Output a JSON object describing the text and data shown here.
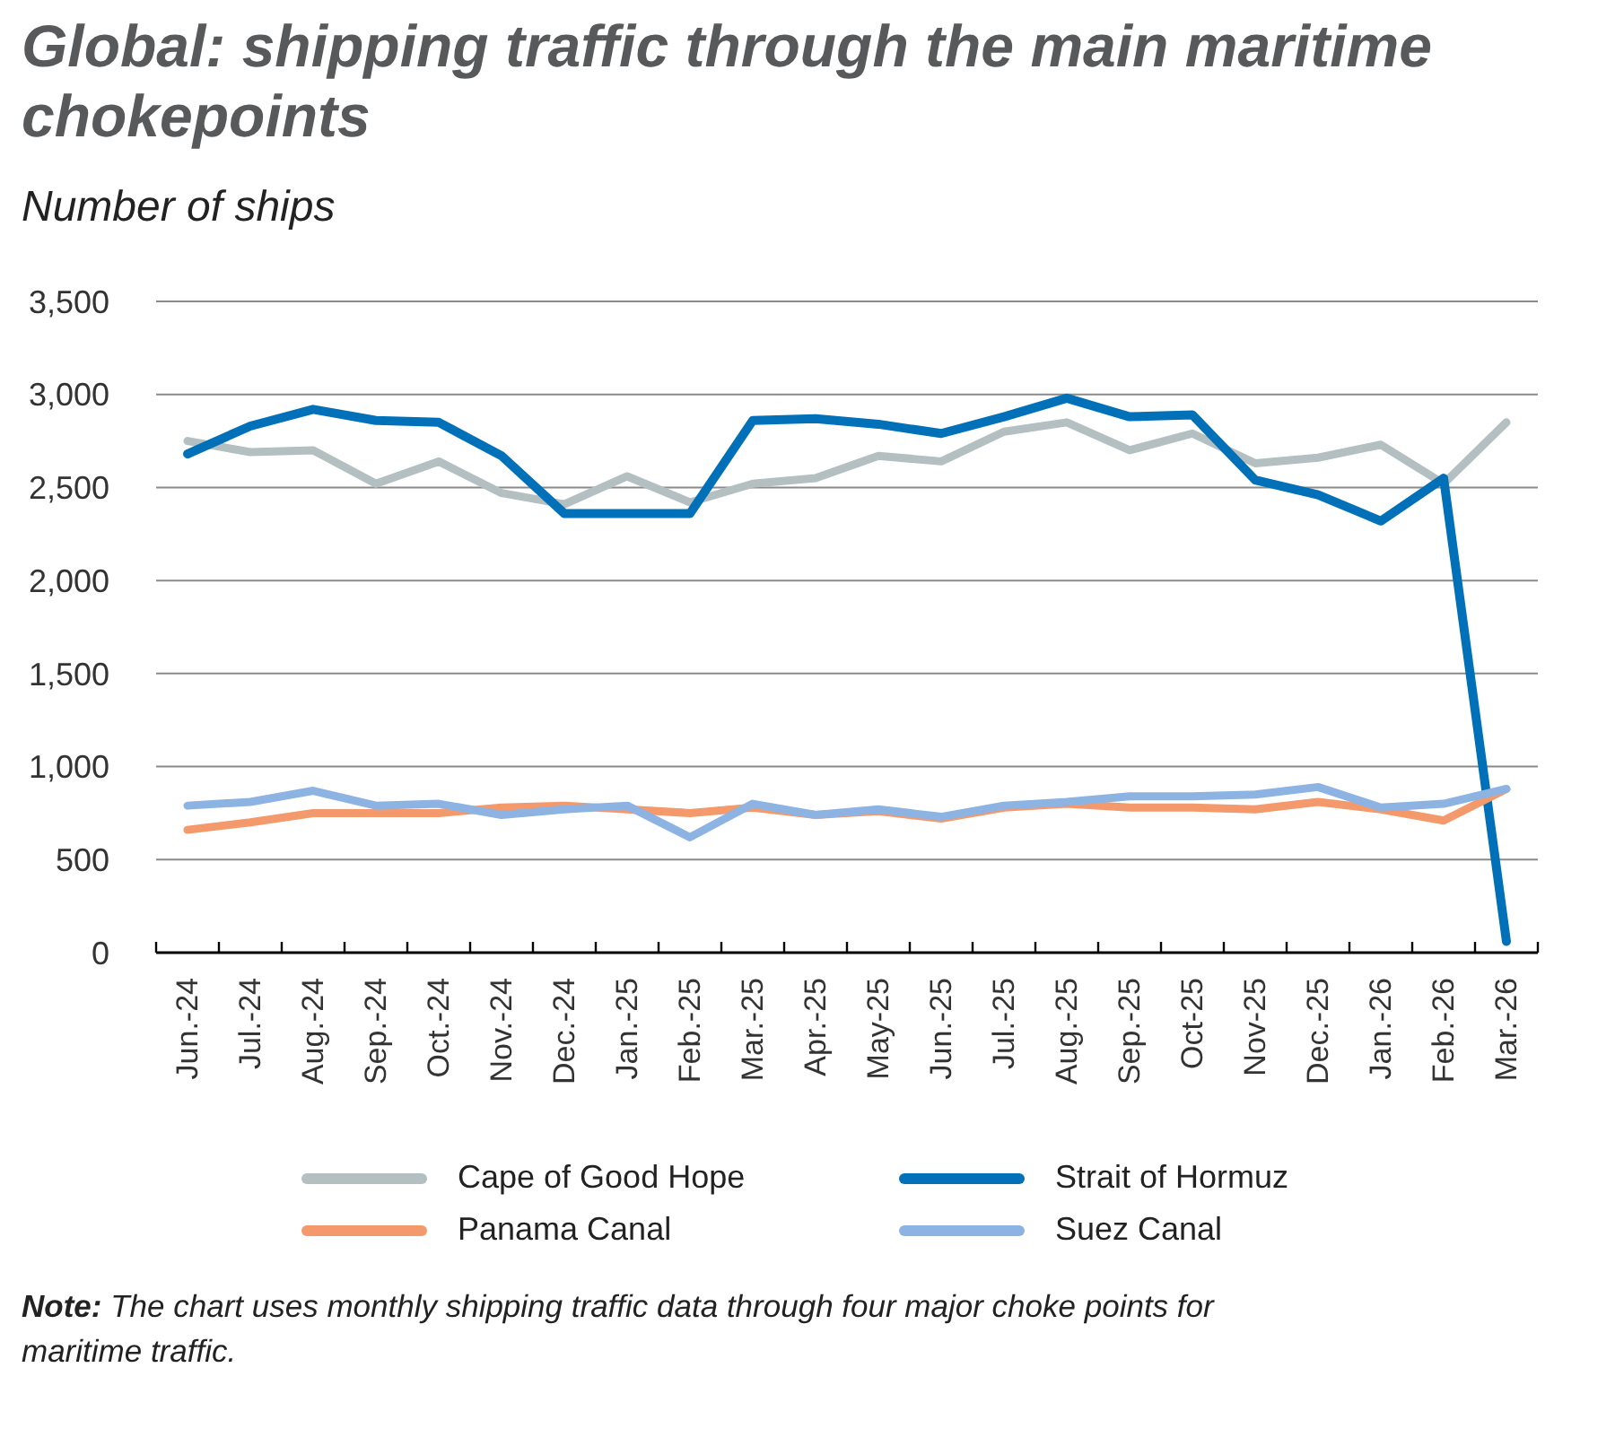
{
  "chart_data": {
    "type": "line",
    "title": "Global: shipping traffic through the main maritime chokepoints",
    "subtitle": "Number of ships",
    "categories": [
      "Jun.-24",
      "Jul.-24",
      "Aug.-24",
      "Sep.-24",
      "Oct.-24",
      "Nov.-24",
      "Dec.-24",
      "Jan.-25",
      "Feb.-25",
      "Mar.-25",
      "Apr.-25",
      "May-25",
      "Jun.-25",
      "Jul.-25",
      "Aug.-25",
      "Sep.-25",
      "Oct-25",
      "Nov-25",
      "Dec.-25",
      "Jan.-26",
      "Feb.-26",
      "Mar.-26"
    ],
    "series": [
      {
        "name": "Cape of Good Hope",
        "color": "#b3bfc0",
        "values": [
          2750,
          2690,
          2700,
          2520,
          2640,
          2470,
          2410,
          2560,
          2420,
          2520,
          2550,
          2670,
          2640,
          2800,
          2850,
          2700,
          2790,
          2630,
          2660,
          2730,
          2520,
          2850
        ]
      },
      {
        "name": "Strait of Hormuz",
        "color": "#0071b8",
        "values": [
          2680,
          2830,
          2920,
          2860,
          2850,
          2670,
          2360,
          2360,
          2360,
          2860,
          2870,
          2840,
          2790,
          2880,
          2980,
          2880,
          2890,
          2540,
          2460,
          2320,
          2550,
          60
        ]
      },
      {
        "name": "Panama Canal",
        "color": "#f4996b",
        "values": [
          660,
          700,
          750,
          750,
          750,
          780,
          790,
          770,
          750,
          780,
          740,
          760,
          720,
          780,
          800,
          780,
          780,
          770,
          810,
          770,
          710,
          880
        ]
      },
      {
        "name": "Suez Canal",
        "color": "#8db3e2",
        "values": [
          790,
          810,
          870,
          790,
          800,
          740,
          770,
          790,
          620,
          800,
          740,
          770,
          730,
          790,
          810,
          840,
          840,
          850,
          890,
          780,
          800,
          880
        ]
      }
    ],
    "ylim": [
      0,
      3500
    ],
    "yticks": [
      0,
      500,
      {
        "value": 1000,
        "label": "1,000"
      },
      {
        "value": 1500,
        "label": "1,500"
      },
      {
        "value": 2000,
        "label": "2,000"
      },
      {
        "value": 2500,
        "label": "2,500"
      },
      {
        "value": 3000,
        "label": "3,000"
      },
      {
        "value": 3500,
        "label": "3,500"
      }
    ],
    "grid": "y",
    "legend": "bottom",
    "annotations": [
      "Note: The chart uses monthly shipping traffic data through four major choke points for maritime traffic."
    ]
  }
}
